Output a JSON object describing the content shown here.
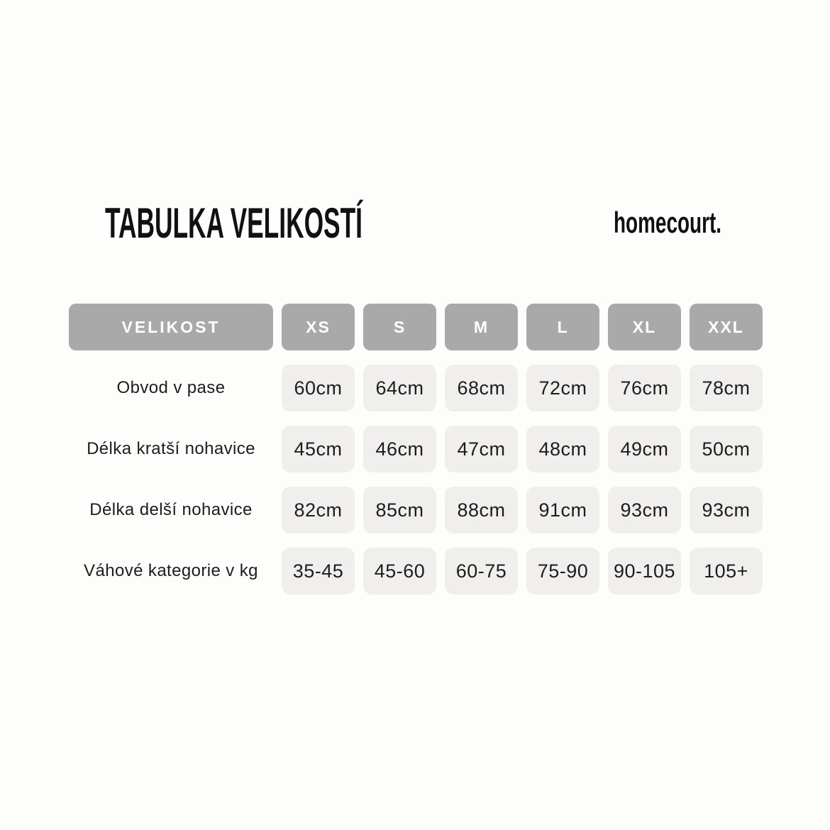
{
  "header": {
    "title": "TABULKA VELIKOSTÍ",
    "brand": "homecourt."
  },
  "colors": {
    "background": "#fdfdfc",
    "header_cell_bg": "#a9a9a9",
    "header_cell_text": "#ffffff",
    "value_cell_bg": "#f0efee",
    "text": "#1d1d1d",
    "title_text": "#111111"
  },
  "chart_data": {
    "type": "table",
    "title": "TABULKA VELIKOSTÍ",
    "columns": [
      "VELIKOST",
      "XS",
      "S",
      "M",
      "L",
      "XL",
      "XXL"
    ],
    "rows": [
      {
        "label": "Obvod v pase",
        "values": [
          "60cm",
          "64cm",
          "68cm",
          "72cm",
          "76cm",
          "78cm"
        ]
      },
      {
        "label": "Délka kratší nohavice",
        "values": [
          "45cm",
          "46cm",
          "47cm",
          "48cm",
          "49cm",
          "50cm"
        ]
      },
      {
        "label": "Délka delší nohavice",
        "values": [
          "82cm",
          "85cm",
          "88cm",
          "91cm",
          "93cm",
          "93cm"
        ]
      },
      {
        "label": "Váhové kategorie v kg",
        "values": [
          "35-45",
          "45-60",
          "60-75",
          "75-90",
          "90-105",
          "105+"
        ]
      }
    ]
  }
}
